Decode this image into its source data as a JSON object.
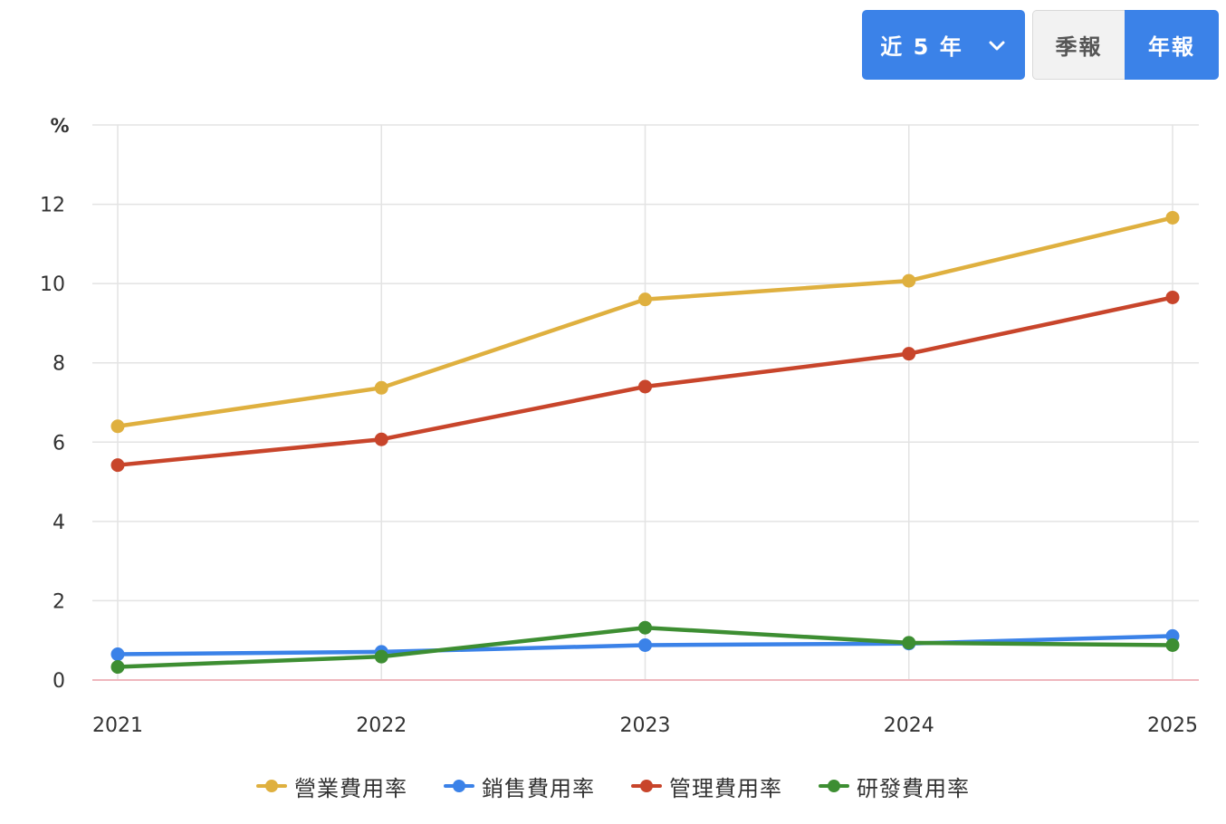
{
  "toolbar": {
    "range_label": "近 5 年",
    "quarter_label": "季報",
    "year_label": "年報",
    "chevron_icon": "chevron-down-icon",
    "active_color": "#3b82e8"
  },
  "chart_data": {
    "type": "line",
    "unit_label": "%",
    "categories": [
      "2021",
      "2022",
      "2023",
      "2024",
      "2025"
    ],
    "ylim": [
      0,
      14
    ],
    "yticks": [
      0,
      2,
      4,
      6,
      8,
      10,
      12
    ],
    "grid": true,
    "legend_position": "bottom",
    "series": [
      {
        "name": "營業費用率",
        "color": "#dfb03f",
        "values": [
          6.4,
          7.37,
          9.6,
          10.07,
          11.66
        ]
      },
      {
        "name": "銷售費用率",
        "color": "#3b82e8",
        "values": [
          0.65,
          0.71,
          0.88,
          0.92,
          1.11
        ]
      },
      {
        "name": "管理費用率",
        "color": "#c8452b",
        "values": [
          5.42,
          6.07,
          7.4,
          8.23,
          9.65
        ]
      },
      {
        "name": "研發費用率",
        "color": "#3d8e32",
        "values": [
          0.33,
          0.59,
          1.32,
          0.94,
          0.88
        ]
      }
    ]
  }
}
